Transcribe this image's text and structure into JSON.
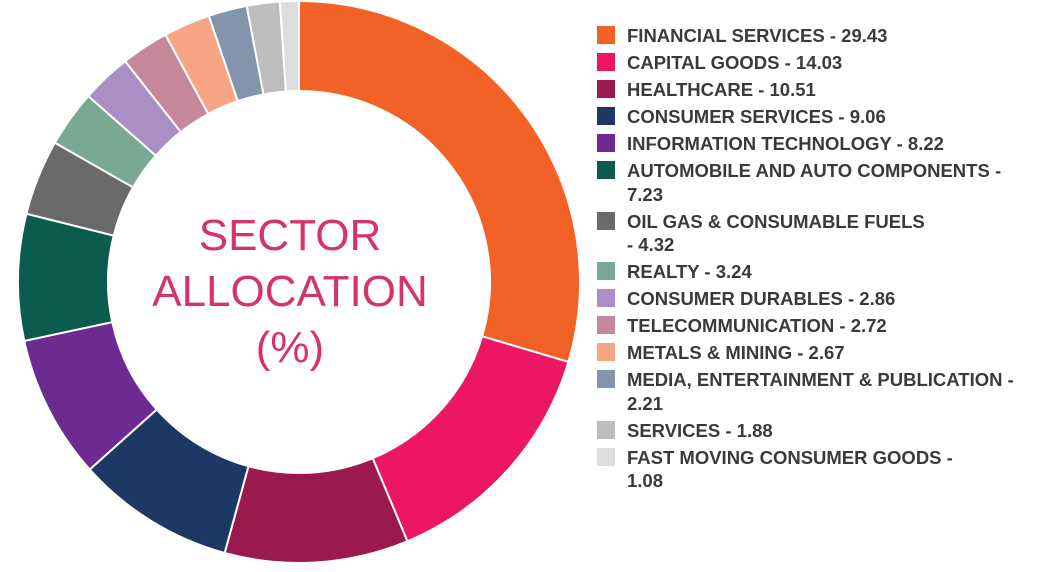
{
  "center": {
    "line1": "SECTOR",
    "line2": "ALLOCATION",
    "line3": "(%)"
  },
  "chart_data": {
    "type": "pie",
    "title": "SECTOR ALLOCATION (%)",
    "donut": true,
    "categories": [
      "FINANCIAL SERVICES",
      "CAPITAL GOODS",
      "HEALTHCARE",
      "CONSUMER SERVICES",
      "INFORMATION TECHNOLOGY",
      "AUTOMOBILE AND AUTO COMPONENTS",
      "OIL GAS & CONSUMABLE FUELS",
      "REALTY",
      "CONSUMER DURABLES",
      "TELECOMMUNICATION",
      "METALS & MINING",
      "MEDIA, ENTERTAINMENT & PUBLICATION",
      "SERVICES",
      "FAST MOVING CONSUMER GOODS"
    ],
    "values": [
      29.43,
      14.03,
      10.51,
      9.06,
      8.22,
      7.23,
      4.32,
      3.24,
      2.86,
      2.72,
      2.67,
      2.21,
      1.88,
      1.08
    ],
    "colors": [
      "#f26126",
      "#ec1665",
      "#9a1a4e",
      "#1e3864",
      "#6d2b91",
      "#0b5c4f",
      "#6a6a6a",
      "#79a894",
      "#ab8ec4",
      "#c7879a",
      "#f7a584",
      "#8494ad",
      "#bdbdbd",
      "#dddddd"
    ],
    "legend_labels": [
      "FINANCIAL SERVICES - 29.43",
      "CAPITAL GOODS - 14.03",
      "HEALTHCARE - 10.51",
      "CONSUMER SERVICES - 9.06",
      "INFORMATION TECHNOLOGY - 8.22",
      "AUTOMOBILE AND AUTO COMPONENTS -\n7.23",
      "OIL GAS & CONSUMABLE FUELS\n - 4.32",
      "REALTY - 3.24",
      "CONSUMER DURABLES - 2.86",
      "TELECOMMUNICATION - 2.72",
      "METALS & MINING - 2.67",
      "MEDIA, ENTERTAINMENT & PUBLICATION -\n2.21",
      "SERVICES - 1.88",
      "FAST MOVING CONSUMER GOODS -\n1.08"
    ],
    "legend_position": "right"
  }
}
